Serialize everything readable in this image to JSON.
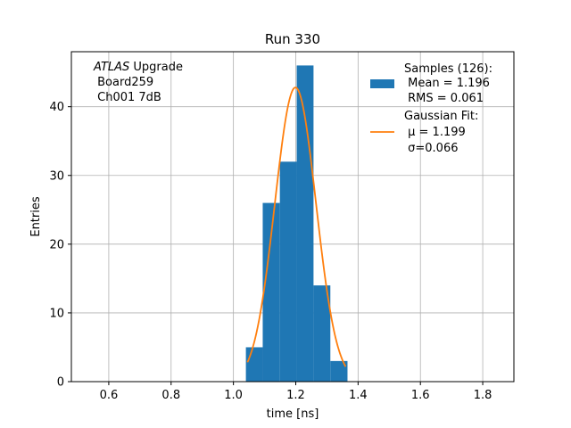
{
  "chart_data": {
    "type": "bar",
    "title": "Run 330",
    "xlabel": "time [ns]",
    "ylabel": "Entries",
    "xlim": [
      0.48,
      1.9
    ],
    "ylim": [
      0,
      48
    ],
    "xticks": [
      0.6,
      0.8,
      1.0,
      1.2,
      1.4,
      1.6,
      1.8
    ],
    "xtick_labels": [
      "0.6",
      "0.8",
      "1.0",
      "1.2",
      "1.4",
      "1.6",
      "1.8"
    ],
    "yticks": [
      0,
      10,
      20,
      30,
      40
    ],
    "ytick_labels": [
      "0",
      "10",
      "20",
      "30",
      "40"
    ],
    "grid": true,
    "histogram": {
      "bin_edges": [
        1.04,
        1.094,
        1.149,
        1.203,
        1.257,
        1.311,
        1.366
      ],
      "counts": [
        5,
        26,
        32,
        46,
        14,
        3
      ],
      "color": "#1f77b4"
    },
    "gaussian_fit": {
      "mu": 1.199,
      "sigma": 0.066,
      "amplitude": 42.8,
      "x_range": [
        1.045,
        1.36
      ],
      "color": "#ff7f0e"
    },
    "legend": {
      "placement": "upper right",
      "entries": [
        {
          "lines": [
            "Samples (126):",
            " Mean = 1.196",
            " RMS = 0.061"
          ],
          "kind": "patch"
        },
        {
          "lines": [
            "Gaussian Fit:",
            " μ = 1.199",
            " σ=0.066"
          ],
          "kind": "line"
        }
      ]
    },
    "annotation": {
      "italic": "ATLAS",
      "line1_rest": " Upgrade",
      "line2": " Board259",
      "line3": " Ch001 7dB"
    }
  }
}
